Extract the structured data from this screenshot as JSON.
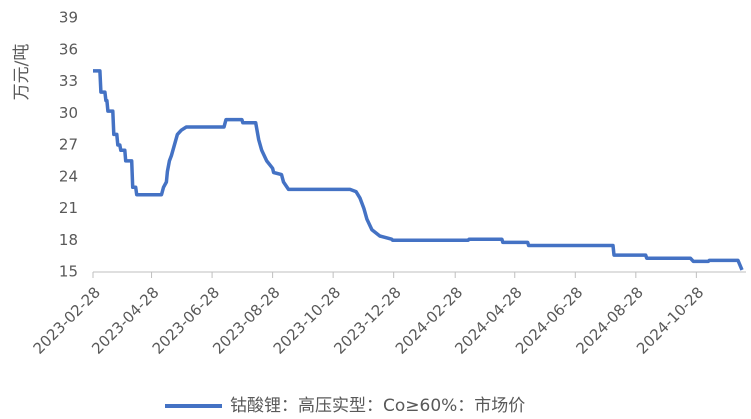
{
  "chart_data": {
    "type": "line",
    "y_label": "万元/吨",
    "x": [
      "2023-02-28",
      "2023-03-07",
      "2023-03-08",
      "2023-03-12",
      "2023-03-13",
      "2023-03-14",
      "2023-03-15",
      "2023-03-20",
      "2023-03-21",
      "2023-03-24",
      "2023-03-25",
      "2023-03-27",
      "2023-03-28",
      "2023-04-01",
      "2023-04-02",
      "2023-04-08",
      "2023-04-09",
      "2023-04-12",
      "2023-04-13",
      "2023-05-08",
      "2023-05-10",
      "2023-05-13",
      "2023-05-14",
      "2023-05-16",
      "2023-05-18",
      "2023-05-21",
      "2023-05-24",
      "2023-05-28",
      "2023-06-02",
      "2023-07-10",
      "2023-07-12",
      "2023-07-28",
      "2023-07-29",
      "2023-08-11",
      "2023-08-14",
      "2023-08-17",
      "2023-08-22",
      "2023-08-28",
      "2023-08-29",
      "2023-09-06",
      "2023-09-08",
      "2023-09-13",
      "2023-11-14",
      "2023-11-20",
      "2023-11-24",
      "2023-11-28",
      "2023-12-01",
      "2023-12-06",
      "2023-12-14",
      "2023-12-26",
      "2023-12-27",
      "2024-03-12",
      "2024-03-13",
      "2024-04-15",
      "2024-04-16",
      "2024-05-11",
      "2024-05-12",
      "2024-08-05",
      "2024-08-06",
      "2024-09-07",
      "2024-09-08",
      "2024-10-22",
      "2024-10-25",
      "2024-11-09",
      "2024-11-10",
      "2024-12-09",
      "2024-12-13"
    ],
    "series": [
      {
        "name": "钴酸锂：高压实型：Co≥60%：市场价",
        "color": "#4472c4",
        "values": [
          34,
          34,
          32,
          32,
          31.2,
          31.2,
          30.2,
          30.2,
          28,
          28,
          27,
          27,
          26.5,
          26.5,
          25.5,
          25.5,
          23,
          23,
          22.3,
          22.3,
          23,
          23.5,
          24.5,
          25.5,
          26,
          27,
          28,
          28.4,
          28.7,
          28.7,
          29.4,
          29.4,
          29.1,
          29.1,
          27.5,
          26.5,
          25.5,
          24.8,
          24.4,
          24.2,
          23.5,
          22.8,
          22.8,
          22.6,
          22,
          21,
          20,
          19,
          18.4,
          18.1,
          18,
          18,
          18.1,
          18.1,
          17.8,
          17.8,
          17.5,
          17.5,
          16.6,
          16.6,
          16.3,
          16.3,
          16,
          16,
          16.1,
          16.1,
          15.2
        ]
      }
    ],
    "xlim": [
      "2023-02-28",
      "2024-12-13"
    ],
    "xticks": [
      "2023-02-28",
      "2023-04-28",
      "2023-06-28",
      "2023-08-28",
      "2023-10-28",
      "2023-12-28",
      "2024-02-28",
      "2024-04-28",
      "2024-06-28",
      "2024-08-28",
      "2024-10-28"
    ],
    "ylim": [
      15,
      39
    ],
    "yticks": [
      15,
      18,
      21,
      24,
      27,
      30,
      33,
      36,
      39
    ],
    "grid": false,
    "legend": "bottom"
  }
}
